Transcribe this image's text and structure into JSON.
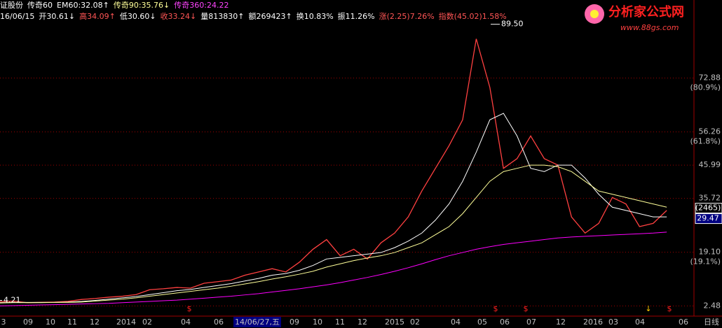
{
  "chart_data": {
    "type": "stock",
    "header_line1": [
      {
        "text": "证股份",
        "color": "#ffffff"
      },
      {
        "text": "传奇60",
        "color": "#ffffff"
      },
      {
        "text": "EM60:32.08↑",
        "color": "#ffffff"
      },
      {
        "text": "传奇90:35.76↓",
        "color": "#ffff99"
      },
      {
        "text": "传奇360:24.22",
        "color": "#ff44ff"
      }
    ],
    "header_line2": [
      {
        "text": "16/06/15",
        "color": "#ffffff"
      },
      {
        "text": "开30.61↓",
        "color": "#ffffff"
      },
      {
        "text": "高34.09↑",
        "color": "#ff5555"
      },
      {
        "text": "低30.60↓",
        "color": "#ffffff"
      },
      {
        "text": "收33.24↓",
        "color": "#ff5555"
      },
      {
        "text": "量813830↑",
        "color": "#ffffff"
      },
      {
        "text": "额269423↑",
        "color": "#ffffff"
      },
      {
        "text": "换10.83%",
        "color": "#ffffff"
      },
      {
        "text": "振11.26%",
        "color": "#ffffff"
      },
      {
        "text": "涨(2.25)7.26%",
        "color": "#ff5555"
      },
      {
        "text": "指数(45.02)1.58%",
        "color": "#ff5555"
      }
    ],
    "logo": {
      "title": "分析家公式网",
      "url": "www.88gs.com"
    },
    "x": [
      0,
      1,
      2,
      3,
      4,
      5,
      6,
      7,
      8,
      9,
      10,
      11,
      12,
      13,
      14,
      15,
      16,
      17,
      18,
      19,
      20,
      21,
      22,
      23,
      24,
      25,
      26,
      27,
      28,
      29,
      30,
      31,
      32,
      33,
      34,
      35,
      36,
      37,
      38,
      39,
      40,
      41,
      42,
      43,
      44,
      45,
      46,
      47,
      48,
      49
    ],
    "xlim": [
      0,
      51
    ],
    "series": [
      {
        "color": "#ff4040",
        "values": [
          3.8,
          4,
          3.5,
          3.6,
          3.7,
          3.9,
          4.5,
          4.8,
          5.2,
          5.5,
          6,
          7.5,
          7.8,
          8.2,
          8,
          9.5,
          10,
          10.5,
          12,
          13,
          14,
          13,
          16,
          20,
          23,
          18,
          20,
          17,
          22,
          25,
          30,
          38,
          45,
          52,
          60,
          85,
          70,
          45,
          48,
          55,
          48,
          46,
          30,
          25,
          28,
          36,
          34,
          27,
          28,
          32
        ]
      },
      {
        "color": "#ffffff",
        "values": [
          3.5,
          3.6,
          3.6,
          3.6,
          3.6,
          3.7,
          3.9,
          4.2,
          4.6,
          5,
          5.4,
          6,
          6.6,
          7.2,
          7.6,
          8.2,
          8.8,
          9.4,
          10.2,
          11,
          12,
          12.5,
          13.5,
          15,
          17,
          17.5,
          18,
          18.5,
          19,
          20.5,
          22.5,
          25,
          29,
          34,
          41,
          50,
          60,
          62,
          55,
          45,
          44,
          46,
          46,
          42,
          37,
          33,
          32,
          31,
          30,
          30
        ]
      },
      {
        "color": "#ffff99",
        "values": [
          3.4,
          3.5,
          3.5,
          3.5,
          3.6,
          3.6,
          3.7,
          4,
          4.3,
          4.6,
          5,
          5.5,
          6,
          6.5,
          7,
          7.5,
          8,
          8.6,
          9.3,
          10,
          10.8,
          11.5,
          12.3,
          13.2,
          14.5,
          15.5,
          16.5,
          17.3,
          18,
          19,
          20.5,
          22,
          24.5,
          27,
          31,
          36,
          41,
          44,
          45,
          46,
          46,
          45.5,
          44,
          41,
          38,
          37,
          36,
          35,
          34,
          33
        ]
      },
      {
        "color": "#ff00ff",
        "values": [
          2.5,
          2.6,
          2.7,
          2.8,
          2.9,
          3,
          3.1,
          3.2,
          3.3,
          3.5,
          3.7,
          3.9,
          4.1,
          4.3,
          4.6,
          4.9,
          5.2,
          5.5,
          5.9,
          6.3,
          6.8,
          7.3,
          7.8,
          8.4,
          9,
          9.7,
          10.5,
          11.3,
          12.2,
          13.2,
          14.3,
          15.5,
          16.8,
          18,
          19,
          20,
          20.8,
          21.5,
          22,
          22.5,
          23,
          23.5,
          23.8,
          24,
          24.2,
          24.4,
          24.6,
          24.8,
          25,
          25.3
        ]
      }
    ],
    "ylim": [
      0,
      97
    ],
    "yticks": [
      72.88,
      56.26,
      45.99,
      35.72,
      {
        "value": 19.1,
        "label": "19.10"
      },
      2.48
    ],
    "fib_labels": [
      "(80.9%)",
      "(61.8%)",
      "(19.1%)"
    ],
    "annotations": [
      {
        "value": 89.5,
        "label": "89.50"
      },
      4.21
    ],
    "last_price": 29.47,
    "last_tag": "(2465)",
    "date_labels": [
      "3",
      "09",
      "10",
      "11",
      "12",
      "2014",
      "02",
      "04",
      "06",
      "14/06/27,五",
      "09",
      "10",
      "11",
      "12",
      "2015",
      "02",
      "04",
      "05",
      "06",
      "07",
      "12",
      "2016",
      "03",
      "04",
      "06",
      "日线"
    ],
    "markers": [
      "$",
      "$",
      "$",
      "↓",
      "$"
    ],
    "grid": true
  }
}
